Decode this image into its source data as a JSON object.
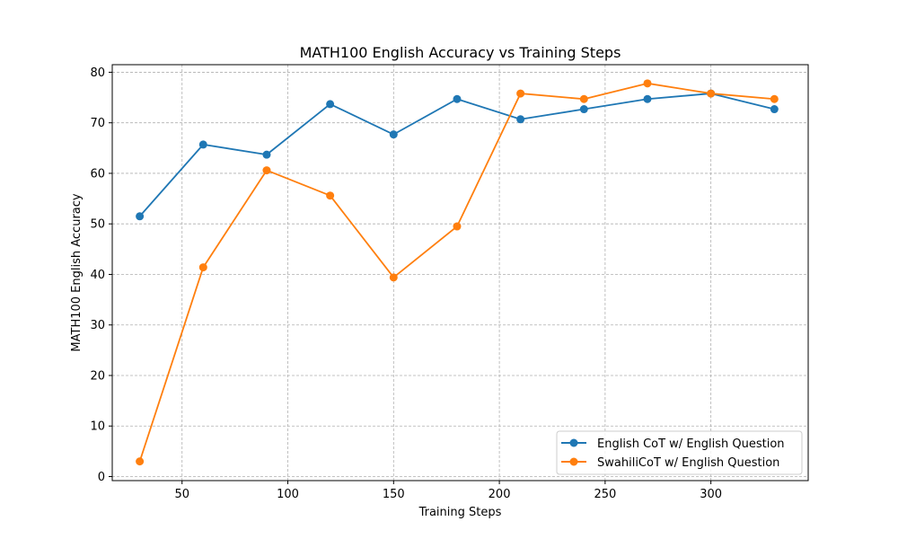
{
  "chart_data": {
    "type": "line",
    "title": "MATH100 English Accuracy vs Training Steps",
    "xlabel": "Training Steps",
    "ylabel": "MATH100 English Accuracy",
    "xlim": [
      17,
      346
    ],
    "ylim": [
      -0.8,
      81.5
    ],
    "xticks": [
      50,
      100,
      150,
      200,
      250,
      300
    ],
    "yticks": [
      0,
      10,
      20,
      30,
      40,
      50,
      60,
      70,
      80
    ],
    "grid": true,
    "legend_position": "lower-right",
    "x": [
      30,
      60,
      90,
      120,
      150,
      180,
      210,
      240,
      270,
      300,
      330
    ],
    "series": [
      {
        "name": "English CoT w/ English Question",
        "color": "#1f77b4",
        "values": [
          51.5,
          65.7,
          63.7,
          73.7,
          67.7,
          74.7,
          70.7,
          72.7,
          74.7,
          75.8,
          72.7
        ]
      },
      {
        "name": "SwahiliCoT w/ English Question",
        "color": "#ff7f0e",
        "values": [
          3.0,
          41.4,
          60.6,
          55.6,
          39.4,
          49.5,
          75.8,
          74.7,
          77.8,
          75.8,
          74.7
        ]
      }
    ]
  }
}
